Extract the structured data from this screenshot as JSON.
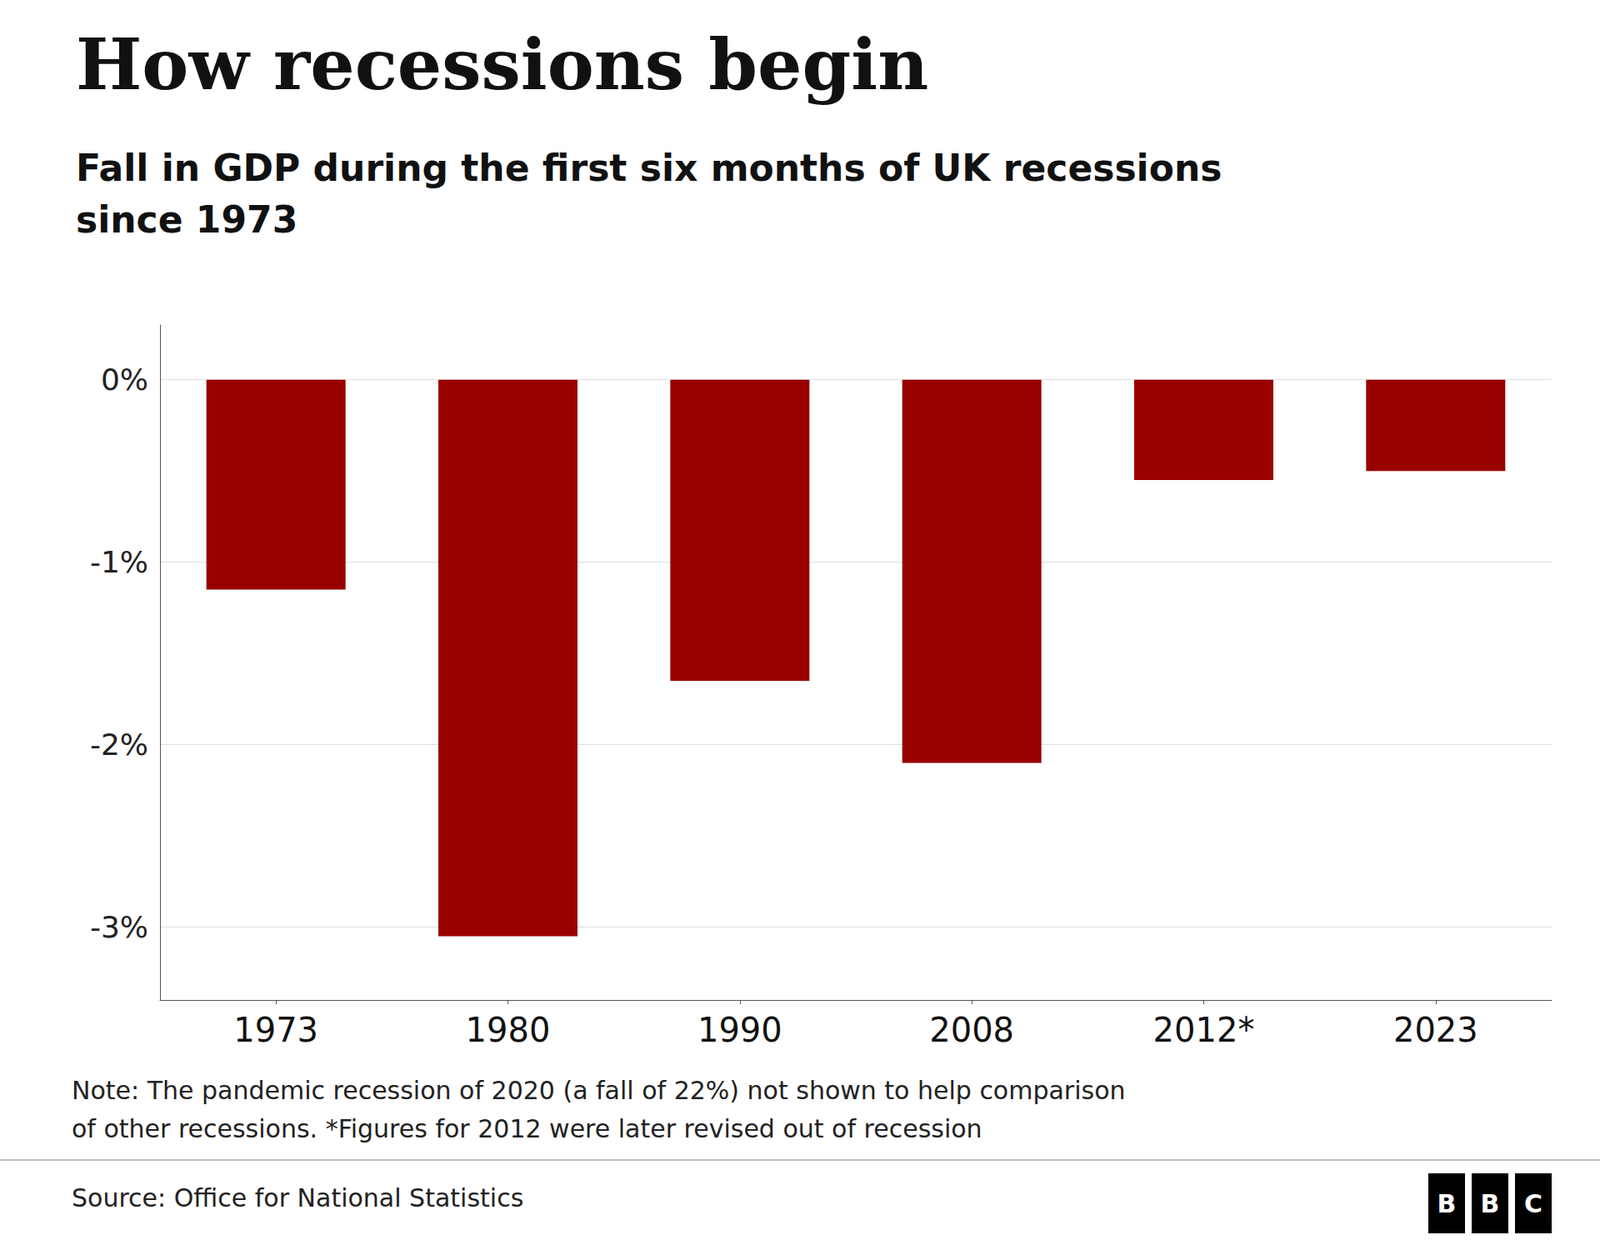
{
  "chart_data": {
    "type": "bar",
    "title": "How recessions begin",
    "subtitle": "Fall in GDP during the first six months of UK recessions\nsince 1973",
    "categories": [
      "1973",
      "1980",
      "1990",
      "2008",
      "2012*",
      "2023"
    ],
    "values": [
      -1.15,
      -3.05,
      -1.65,
      -2.1,
      -0.55,
      -0.5
    ],
    "color": "#990000",
    "ylim": [
      -3.4,
      0.3
    ],
    "yticks": [
      {
        "value": 0,
        "label": "0%"
      },
      {
        "value": -1,
        "label": "-1%"
      },
      {
        "value": -2,
        "label": "-2%"
      },
      {
        "value": -3,
        "label": "-3%"
      }
    ],
    "grid": true,
    "note": "Note: The pandemic recession of 2020 (a fall of 22%) not shown to help comparison\nof other recessions. *Figures for 2012 were later revised out of recession",
    "source": "Source: Office for National Statistics",
    "logo_letters": [
      "B",
      "B",
      "C"
    ]
  }
}
